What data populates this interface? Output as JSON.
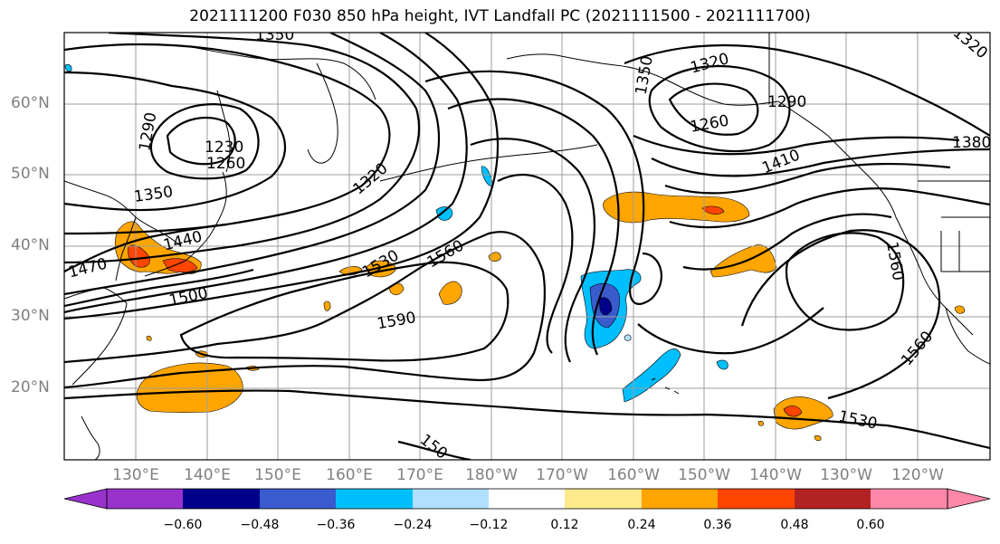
{
  "title": "2021111200 F030 850 hPa height, IVT Landfall PC (2021111500 - 2021111700)",
  "latitude_labels": [
    "60°N",
    "50°N",
    "40°N",
    "30°N",
    "20°N"
  ],
  "longitude_labels": [
    "130°E",
    "140°E",
    "150°E",
    "160°E",
    "170°E",
    "180°W",
    "170°W",
    "160°W",
    "150°W",
    "140°W",
    "130°W",
    "120°W"
  ],
  "contour_labels": [
    "1350",
    "1290",
    "1230",
    "1260",
    "1350",
    "1320",
    "1440",
    "1470",
    "1500",
    "1530",
    "1560",
    "1590",
    "1350",
    "1320",
    "1290",
    "1260",
    "1410",
    "1380",
    "1320",
    "1560",
    "1560",
    "1530",
    "150"
  ],
  "colorbar": {
    "ticks": [
      "−0.60",
      "−0.48",
      "−0.36",
      "−0.24",
      "−0.12",
      "0.12",
      "0.24",
      "0.36",
      "0.48",
      "0.60"
    ],
    "colors": [
      "#9932cc",
      "#00008b",
      "#3a5bcd",
      "#00bfff",
      "#b0e0ff",
      "#ffffff",
      "#ffe98a",
      "#ffa500",
      "#ff4500",
      "#b22222",
      "#ff88aa"
    ]
  },
  "styles": {
    "coast_color": "#000000",
    "grid_color": "#9e9e9e",
    "axis_label_color": "#808080"
  }
}
